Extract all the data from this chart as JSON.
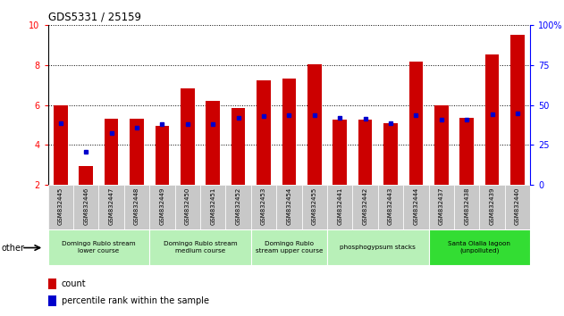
{
  "title": "GDS5331 / 25159",
  "samples": [
    "GSM832445",
    "GSM832446",
    "GSM832447",
    "GSM832448",
    "GSM832449",
    "GSM832450",
    "GSM832451",
    "GSM832452",
    "GSM832453",
    "GSM832454",
    "GSM832455",
    "GSM832441",
    "GSM832442",
    "GSM832443",
    "GSM832444",
    "GSM832437",
    "GSM832438",
    "GSM832439",
    "GSM832440"
  ],
  "count_values": [
    6.0,
    2.95,
    5.3,
    5.3,
    4.95,
    6.85,
    6.2,
    5.85,
    7.25,
    7.35,
    8.05,
    5.25,
    5.25,
    5.1,
    8.2,
    6.0,
    5.35,
    8.55,
    9.5
  ],
  "percentile_values": [
    5.1,
    3.65,
    4.6,
    4.85,
    5.05,
    5.05,
    5.05,
    5.35,
    5.45,
    5.5,
    5.5,
    5.35,
    5.3,
    5.1,
    5.5,
    5.25,
    5.25,
    5.55,
    5.6
  ],
  "bar_color": "#cc0000",
  "percentile_color": "#0000cc",
  "ylim_left": [
    2,
    10
  ],
  "ylim_right": [
    0,
    100
  ],
  "yticks_left": [
    2,
    4,
    6,
    8,
    10
  ],
  "yticks_right": [
    0,
    25,
    50,
    75,
    100
  ],
  "bar_width": 0.55,
  "groups": [
    {
      "label": "Domingo Rubio stream\nlower course",
      "start": 0,
      "end": 4,
      "color": "#b8f0b8"
    },
    {
      "label": "Domingo Rubio stream\nmedium course",
      "start": 4,
      "end": 8,
      "color": "#b8f0b8"
    },
    {
      "label": "Domingo Rubio\nstream upper course",
      "start": 8,
      "end": 11,
      "color": "#b8f0b8"
    },
    {
      "label": "phosphogypsum stacks",
      "start": 11,
      "end": 15,
      "color": "#b8f0b8"
    },
    {
      "label": "Santa Olalla lagoon\n(unpolluted)",
      "start": 15,
      "end": 19,
      "color": "#33dd33"
    }
  ],
  "other_label": "other",
  "legend_count_label": "count",
  "legend_percentile_label": "percentile rank within the sample",
  "xticklabel_bg": "#c8c8c8"
}
